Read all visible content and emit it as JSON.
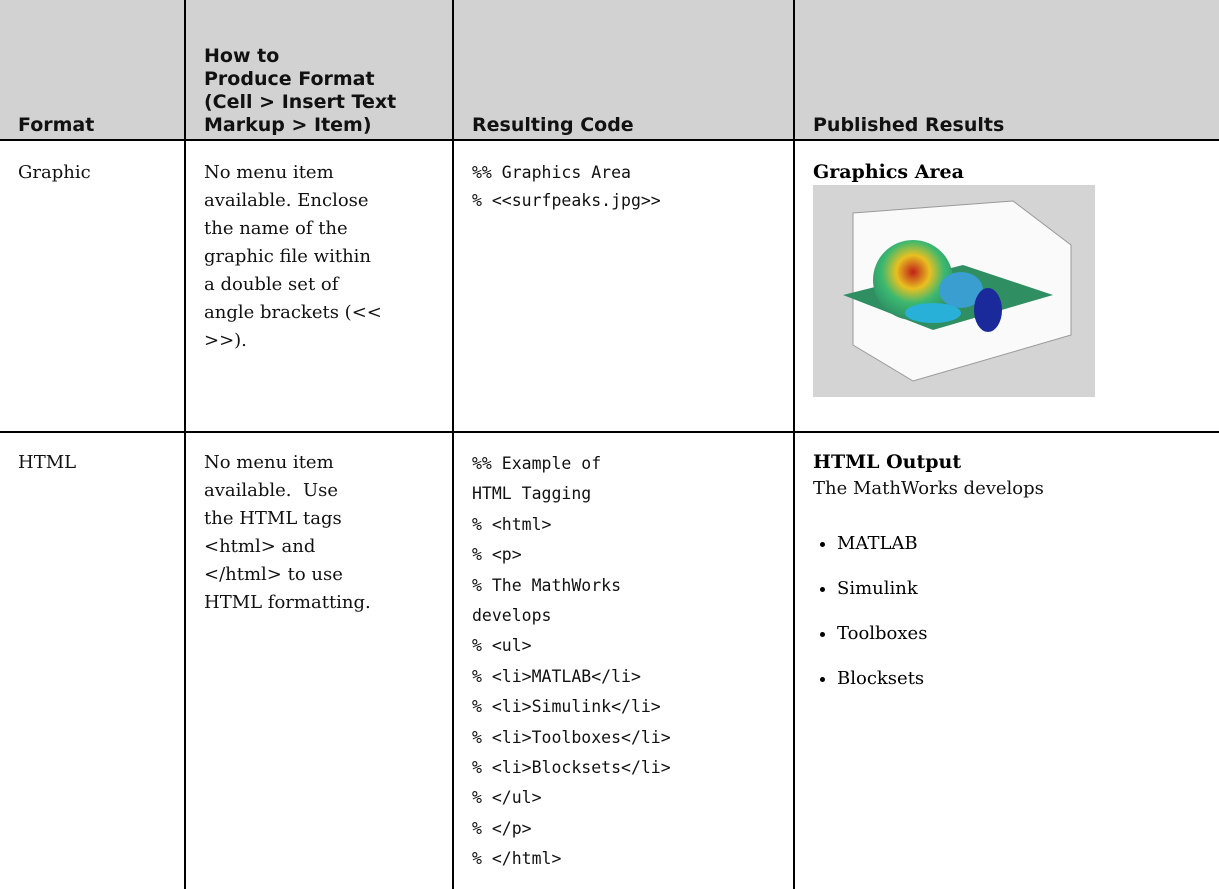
{
  "table": {
    "header": [
      [
        "Format"
      ],
      [
        "How to",
        "Produce Format",
        "(Cell > Insert Text",
        "Markup > Item)"
      ],
      [
        "Resulting Code"
      ],
      [
        "Published Results"
      ]
    ],
    "rows": [
      {
        "format": "Graphic",
        "how": [
          "No menu item",
          "available. Enclose",
          "the name of the",
          "graphic file within",
          "a double set of",
          "angle brackets (<<",
          ">>)."
        ],
        "code": [
          "%% Graphics Area",
          "% <<surfpeaks.jpg>>"
        ],
        "published": {
          "heading": "Graphics Area"
        }
      },
      {
        "format": "HTML",
        "how": [
          "No menu item",
          "available.  Use",
          "the HTML tags",
          "<html> and",
          "</html> to use",
          "HTML formatting."
        ],
        "code": [
          "%% Example of",
          "HTML Tagging",
          "% <html>",
          "% <p>",
          "% The MathWorks",
          "develops",
          "% <ul>",
          "% <li>MATLAB</li>",
          "% <li>Simulink</li>",
          "% <li>Toolboxes</li>",
          "% <li>Blocksets</li>",
          "% </ul>",
          "% </p>",
          "% </html>"
        ],
        "published": {
          "heading": "HTML Output",
          "text": "The MathWorks develops",
          "list": [
            "MATLAB",
            "Simulink",
            "Toolboxes",
            "Blocksets"
          ]
        }
      }
    ]
  }
}
